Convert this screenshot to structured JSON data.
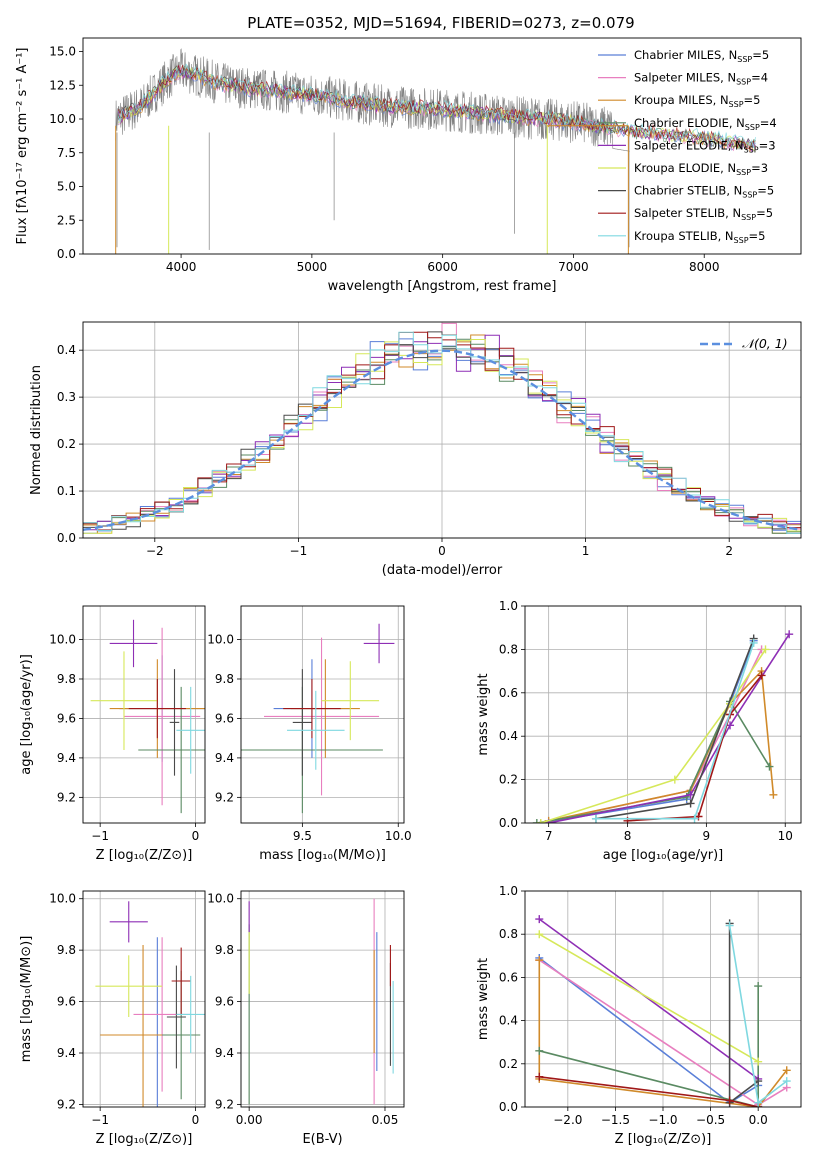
{
  "colors": {
    "chabrier_miles": "#5a7fd8",
    "salpeter_miles": "#e87fbf",
    "kroupa_miles": "#d08a2a",
    "chabrier_elodie": "#5a8a62",
    "salpeter_elodie": "#8e2fb5",
    "kroupa_elodie": "#d6e85a",
    "chabrier_stelib": "#4a4a4a",
    "salpeter_stelib": "#a01818",
    "kroupa_stelib": "#7fd8e0",
    "normal_curve": "#5b8fdf",
    "spectrum": "#808080",
    "grid": "#b0b0b0"
  },
  "chart_data": [
    {
      "id": "spectrum",
      "type": "line",
      "title": "PLATE=0352, MJD=51694, FIBERID=0273, z=0.079",
      "xlabel": "wavelength [Angstrom, rest frame]",
      "ylabel": "Flux [fλ10⁻¹⁷ erg cm⁻² s⁻¹ A⁻¹]",
      "xlim": [
        3250,
        8740
      ],
      "ylim": [
        0,
        16
      ],
      "xticks": [
        "4000",
        "5000",
        "6000",
        "7000",
        "8000"
      ],
      "yticks": [
        "0.0",
        "2.5",
        "5.0",
        "7.5",
        "10.0",
        "12.5",
        "15.0"
      ],
      "grid": false,
      "legend_position": "top-right",
      "legend": [
        "Chabrier MILES, N",
        "Salpeter MILES, N",
        "Kroupa MILES, N",
        "Chabrier ELODIE, N",
        "Salpeter ELODIE, N",
        "Kroupa ELODIE, N",
        "Chabrier STELIB, N",
        "Salpeter STELIB, N",
        "Kroupa STELIB, N"
      ],
      "legend_sub": "SSP",
      "legend_counts": [
        "=5",
        "=4",
        "=5",
        "=4",
        "=3",
        "=3",
        "=5",
        "=5",
        "=5"
      ],
      "model_trend": {
        "x": [
          3500,
          3700,
          3900,
          4000,
          4100,
          4300,
          4500,
          5000,
          5500,
          6000,
          6500,
          7000,
          7500,
          8000,
          8400
        ],
        "y": [
          10.0,
          11.0,
          13.0,
          13.6,
          13.3,
          12.6,
          12.3,
          11.8,
          11.0,
          10.7,
          10.2,
          9.8,
          9.0,
          8.6,
          8.0
        ]
      }
    },
    {
      "id": "residual_hist",
      "type": "line",
      "xlabel": "(data-model)/error",
      "ylabel": "Normed distribution",
      "xlim": [
        -2.5,
        2.5
      ],
      "ylim": [
        0,
        0.46
      ],
      "xticks": [
        "−2",
        "−1",
        "0",
        "1",
        "2"
      ],
      "yticks": [
        "0.0",
        "0.1",
        "0.2",
        "0.3",
        "0.4"
      ],
      "grid": true,
      "legend_position": "top-right",
      "legend": [
        "𝒩(0, 1)"
      ],
      "bin_width": 0.1
    },
    {
      "id": "age_vs_Z",
      "type": "scatter",
      "xlabel": "Z [log₁₀(Z/Z⊙)]",
      "ylabel": "age  [log₁₀(age/yr)]",
      "xlim": [
        -1.18,
        0.1
      ],
      "ylim": [
        9.07,
        10.17
      ],
      "xticks": [
        "−1",
        "0"
      ],
      "yticks": [
        "9.2",
        "9.4",
        "9.6",
        "9.8",
        "10.0"
      ],
      "grid": true,
      "points": [
        {
          "model": "chabrier_miles",
          "x": -0.35,
          "xerr": 0.45,
          "y": 9.65,
          "yerr": 0.27
        },
        {
          "model": "salpeter_miles",
          "x": -0.35,
          "xerr": 0.4,
          "y": 9.61,
          "yerr": 0.45
        },
        {
          "model": "kroupa_miles",
          "x": -0.4,
          "xerr": 0.5,
          "y": 9.65,
          "yerr": 0.25
        },
        {
          "model": "chabrier_elodie",
          "x": -0.15,
          "xerr": 0.45,
          "y": 9.44,
          "yerr": 0.32
        },
        {
          "model": "salpeter_elodie",
          "x": -0.65,
          "xerr": 0.25,
          "y": 9.98,
          "yerr": 0.12
        },
        {
          "model": "kroupa_elodie",
          "x": -0.75,
          "xerr": 0.35,
          "y": 9.69,
          "yerr": 0.25
        },
        {
          "model": "chabrier_stelib",
          "x": -0.22,
          "xerr": 0.05,
          "y": 9.58,
          "yerr": 0.27
        },
        {
          "model": "salpeter_stelib",
          "x": -0.4,
          "xerr": 0.3,
          "y": 9.65,
          "yerr": 0.15
        },
        {
          "model": "kroupa_stelib",
          "x": -0.05,
          "xerr": 0.15,
          "y": 9.54,
          "yerr": 0.22
        }
      ]
    },
    {
      "id": "age_vs_mass",
      "type": "scatter",
      "xlabel": "mass [log₁₀(M/M⊙)]",
      "ylabel": "",
      "xlim": [
        9.18,
        10.03
      ],
      "ylim": [
        9.07,
        10.17
      ],
      "xticks": [
        "9.5",
        "10.0"
      ],
      "yticks": [
        "9.2",
        "9.4",
        "9.6",
        "9.8",
        "10.0"
      ],
      "grid": true,
      "points": [
        {
          "model": "chabrier_miles",
          "x": 9.55,
          "xerr": 0.2,
          "y": 9.65,
          "yerr": 0.25
        },
        {
          "model": "salpeter_miles",
          "x": 9.6,
          "xerr": 0.3,
          "y": 9.61,
          "yerr": 0.4
        },
        {
          "model": "kroupa_miles",
          "x": 9.62,
          "xerr": 0.18,
          "y": 9.65,
          "yerr": 0.25
        },
        {
          "model": "chabrier_elodie",
          "x": 9.5,
          "xerr": 0.42,
          "y": 9.44,
          "yerr": 0.32
        },
        {
          "model": "salpeter_elodie",
          "x": 9.9,
          "xerr": 0.08,
          "y": 9.98,
          "yerr": 0.1
        },
        {
          "model": "kroupa_elodie",
          "x": 9.75,
          "xerr": 0.15,
          "y": 9.69,
          "yerr": 0.2
        },
        {
          "model": "chabrier_stelib",
          "x": 9.5,
          "xerr": 0.05,
          "y": 9.58,
          "yerr": 0.27
        },
        {
          "model": "salpeter_stelib",
          "x": 9.55,
          "xerr": 0.15,
          "y": 9.65,
          "yerr": 0.15
        },
        {
          "model": "kroupa_stelib",
          "x": 9.57,
          "xerr": 0.15,
          "y": 9.54,
          "yerr": 0.2
        }
      ]
    },
    {
      "id": "weight_vs_age",
      "type": "line",
      "xlabel": "age  [log₁₀(age/yr)]",
      "ylabel": "mass weight",
      "xlim": [
        6.7,
        10.2
      ],
      "ylim": [
        0,
        1
      ],
      "xticks": [
        "7",
        "8",
        "9",
        "10"
      ],
      "yticks": [
        "0.0",
        "0.2",
        "0.4",
        "0.6",
        "0.8",
        "1.0"
      ],
      "grid": true,
      "series": [
        {
          "model": "chabrier_miles",
          "x": [
            6.9,
            8.75,
            9.3,
            9.6
          ],
          "y": [
            0.0,
            0.11,
            0.55,
            0.84
          ]
        },
        {
          "model": "salpeter_miles",
          "x": [
            6.9,
            8.8,
            9.3,
            9.7
          ],
          "y": [
            0.0,
            0.15,
            0.5,
            0.8
          ]
        },
        {
          "model": "kroupa_miles",
          "x": [
            7.0,
            8.8,
            9.3,
            9.7,
            9.85
          ],
          "y": [
            0.01,
            0.15,
            0.55,
            0.7,
            0.13
          ]
        },
        {
          "model": "chabrier_elodie",
          "x": [
            6.85,
            8.75,
            9.3,
            9.8
          ],
          "y": [
            0.0,
            0.12,
            0.56,
            0.26
          ]
        },
        {
          "model": "salpeter_elodie",
          "x": [
            7.0,
            8.8,
            9.3,
            10.05
          ],
          "y": [
            0.0,
            0.13,
            0.45,
            0.87
          ]
        },
        {
          "model": "kroupa_elodie",
          "x": [
            6.9,
            8.6,
            9.3,
            9.75
          ],
          "y": [
            0.0,
            0.2,
            0.55,
            0.8
          ]
        },
        {
          "model": "chabrier_stelib",
          "x": [
            7.6,
            8.8,
            9.6
          ],
          "y": [
            0.02,
            0.09,
            0.85
          ]
        },
        {
          "model": "salpeter_stelib",
          "x": [
            8.0,
            8.9,
            9.3,
            9.7
          ],
          "y": [
            0.01,
            0.03,
            0.5,
            0.68
          ]
        },
        {
          "model": "kroupa_stelib",
          "x": [
            7.6,
            8.85,
            9.6
          ],
          "y": [
            0.02,
            0.02,
            0.83
          ]
        }
      ]
    },
    {
      "id": "mass_vs_Z",
      "type": "scatter",
      "xlabel": "Z [log₁₀(Z/Z⊙)]",
      "ylabel": "mass [log₁₀(M/M⊙)]",
      "xlim": [
        -1.18,
        0.1
      ],
      "ylim": [
        9.19,
        10.03
      ],
      "xticks": [
        "−1",
        "0"
      ],
      "yticks": [
        "9.2",
        "9.4",
        "9.6",
        "9.8",
        "10.0"
      ],
      "grid": true,
      "points": [
        {
          "model": "chabrier_miles",
          "x": -0.4,
          "xerr": 0.3,
          "y": 9.47,
          "yerr": 0.38
        },
        {
          "model": "salpeter_miles",
          "x": -0.35,
          "xerr": 0.3,
          "y": 9.55,
          "yerr": 0.3
        },
        {
          "model": "kroupa_miles",
          "x": -0.55,
          "xerr": 0.45,
          "y": 9.47,
          "yerr": 0.35
        },
        {
          "model": "chabrier_elodie",
          "x": -0.15,
          "xerr": 0.2,
          "y": 9.47,
          "yerr": 0.25
        },
        {
          "model": "salpeter_elodie",
          "x": -0.7,
          "xerr": 0.2,
          "y": 9.91,
          "yerr": 0.08
        },
        {
          "model": "kroupa_elodie",
          "x": -0.7,
          "xerr": 0.35,
          "y": 9.66,
          "yerr": 0.12
        },
        {
          "model": "chabrier_stelib",
          "x": -0.2,
          "xerr": 0.1,
          "y": 9.54,
          "yerr": 0.2
        },
        {
          "model": "salpeter_stelib",
          "x": -0.15,
          "xerr": 0.1,
          "y": 9.68,
          "yerr": 0.13
        },
        {
          "model": "kroupa_stelib",
          "x": -0.05,
          "xerr": 0.15,
          "y": 9.55,
          "yerr": 0.15
        }
      ]
    },
    {
      "id": "mass_vs_ebv",
      "type": "scatter",
      "xlabel": "E(B-V)",
      "ylabel": "",
      "xlim": [
        -0.003,
        0.057
      ],
      "ylim": [
        9.19,
        10.03
      ],
      "xticks": [
        "0.00",
        "0.05"
      ],
      "yticks": [
        "9.2",
        "9.4",
        "9.6",
        "9.8",
        "10.0"
      ],
      "grid": true,
      "points": [
        {
          "model": "chabrier_miles",
          "x": 0.047,
          "y": 9.6,
          "yerr": 0.27
        },
        {
          "model": "salpeter_miles",
          "x": 0.046,
          "y": 9.6,
          "yerr": 0.4
        },
        {
          "model": "kroupa_miles",
          "x": 0.046,
          "y": 9.6,
          "yerr": 0.2
        },
        {
          "model": "chabrier_elodie",
          "x": 0.0,
          "y": 9.55,
          "yerr": 0.35
        },
        {
          "model": "salpeter_elodie",
          "x": 0.0,
          "y": 9.93,
          "yerr": 0.06
        },
        {
          "model": "kroupa_elodie",
          "x": 0.0,
          "y": 9.75,
          "yerr": 0.12
        },
        {
          "model": "chabrier_stelib",
          "x": 0.052,
          "y": 9.55,
          "yerr": 0.2
        },
        {
          "model": "salpeter_stelib",
          "x": 0.052,
          "y": 9.74,
          "yerr": 0.08
        },
        {
          "model": "kroupa_stelib",
          "x": 0.053,
          "y": 9.5,
          "yerr": 0.18
        }
      ]
    },
    {
      "id": "weight_vs_Z",
      "type": "line",
      "xlabel": "Z [log₁₀(Z/Z⊙)]",
      "ylabel": "mass weight",
      "xlim": [
        -2.45,
        0.45
      ],
      "ylim": [
        0,
        1
      ],
      "xticks": [
        "−2.0",
        "−1.5",
        "−1.0",
        "−0.5",
        "0.0"
      ],
      "yticks": [
        "0.0",
        "0.2",
        "0.4",
        "0.6",
        "0.8",
        "1.0"
      ],
      "grid": true,
      "series": [
        {
          "model": "chabrier_miles",
          "x": [
            -2.3,
            -0.3,
            0.0
          ],
          "y": [
            0.69,
            0.02,
            0.1
          ]
        },
        {
          "model": "salpeter_miles",
          "x": [
            -2.3,
            0.0,
            0.3
          ],
          "y": [
            0.68,
            0.01,
            0.09
          ]
        },
        {
          "model": "kroupa_miles",
          "x": [
            -2.3,
            -2.3,
            0.0,
            0.3
          ],
          "y": [
            0.68,
            0.13,
            0.0,
            0.17
          ]
        },
        {
          "model": "chabrier_elodie",
          "x": [
            -2.3,
            0.0,
            0.0
          ],
          "y": [
            0.26,
            0.0,
            0.56
          ]
        },
        {
          "model": "salpeter_elodie",
          "x": [
            -2.3,
            0.0
          ],
          "y": [
            0.87,
            0.13
          ]
        },
        {
          "model": "kroupa_elodie",
          "x": [
            -2.3,
            0.0
          ],
          "y": [
            0.8,
            0.21
          ]
        },
        {
          "model": "chabrier_stelib",
          "x": [
            -0.3,
            -0.3,
            0.0
          ],
          "y": [
            0.85,
            0.02,
            0.12
          ]
        },
        {
          "model": "salpeter_stelib",
          "x": [
            -2.3,
            -0.3,
            0.0
          ],
          "y": [
            0.14,
            0.03,
            0.0
          ]
        },
        {
          "model": "kroupa_stelib",
          "x": [
            -0.3,
            0.0,
            0.3
          ],
          "y": [
            0.84,
            0.02,
            0.12
          ]
        }
      ]
    }
  ]
}
